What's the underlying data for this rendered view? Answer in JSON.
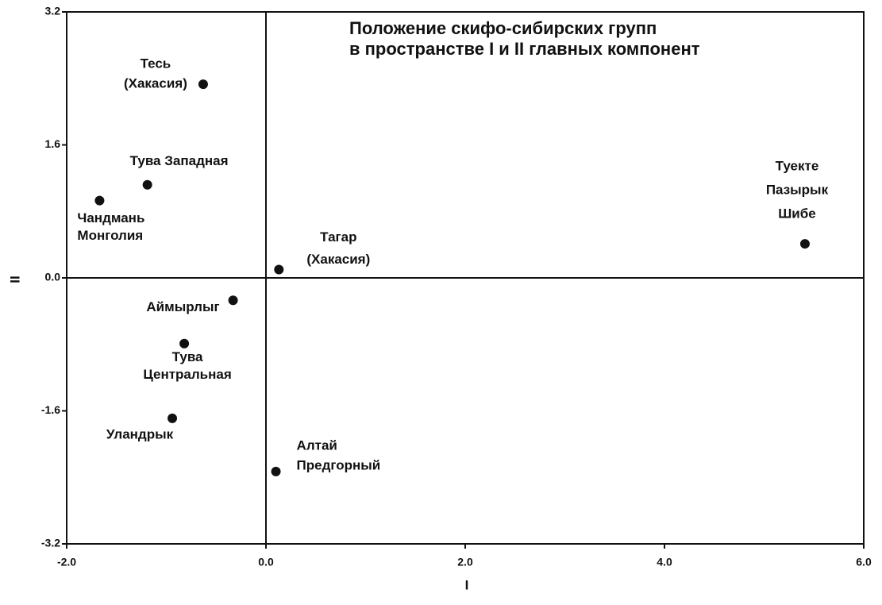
{
  "chart_data": {
    "type": "scatter",
    "title_lines": [
      "Положение скифо-сибирских групп",
      "в пространстве I и II главных компонент"
    ],
    "x_label": "I",
    "y_label": "II",
    "x": [
      -0.63,
      -1.19,
      -1.67,
      0.13,
      5.41,
      -0.33,
      -0.82,
      -0.94,
      0.1
    ],
    "y": [
      2.33,
      1.12,
      0.93,
      0.1,
      0.41,
      -0.27,
      -0.79,
      -1.69,
      -2.33
    ],
    "labels": [
      [
        "Тесь",
        "(Хакасия)"
      ],
      [
        "Тува Западная"
      ],
      [
        "Чандмань",
        "Монголия"
      ],
      [
        "Тагар",
        "(Хакасия)"
      ],
      [
        "Туекте",
        "Пазырык",
        "Шибе"
      ],
      [
        "Аймырлыг"
      ],
      [
        "Тува",
        "Центральная"
      ],
      [
        "Уландрык"
      ],
      [
        "Алтай",
        "Предгорный"
      ]
    ],
    "color": "#111111",
    "xlim": [
      -2.0,
      6.0
    ],
    "xticks": [
      {
        "value": -2,
        "label": "-2.0"
      },
      {
        "value": 0,
        "label": "0.0"
      },
      {
        "value": 2,
        "label": "2.0"
      },
      {
        "value": 4,
        "label": "4.0"
      },
      {
        "value": 6,
        "label": "6.0"
      }
    ],
    "ylim": [
      -3.2,
      3.2
    ],
    "yticks": [
      -3.2,
      -1.6,
      {
        "value": 0,
        "label": "0.0"
      },
      1.6,
      3.2
    ]
  }
}
